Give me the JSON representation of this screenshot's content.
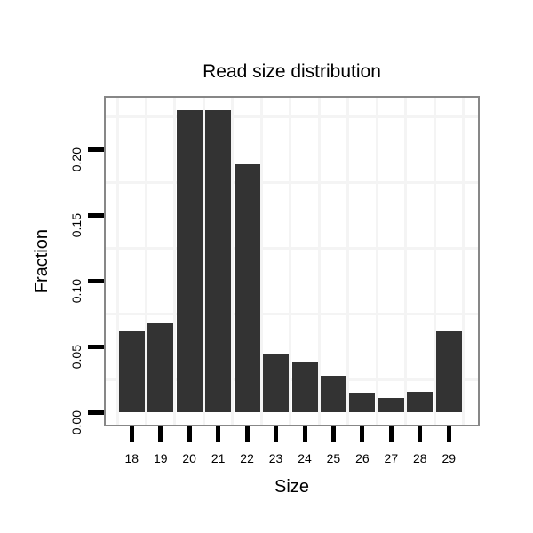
{
  "chart": {
    "title": "Read size distribution",
    "colors": {
      "bar": "#333333",
      "panel_border": "#878787",
      "grid_minor": "#f4f4f4",
      "tick": "#000000",
      "text": "#000000",
      "background": "#ffffff"
    }
  },
  "chart_data": {
    "type": "bar",
    "title": "Read size distribution",
    "xlabel": "Size",
    "ylabel": "Fraction",
    "categories": [
      "18",
      "19",
      "20",
      "21",
      "22",
      "23",
      "24",
      "25",
      "26",
      "27",
      "28",
      "29"
    ],
    "values": [
      0.062,
      0.068,
      0.23,
      0.23,
      0.189,
      0.045,
      0.039,
      0.028,
      0.015,
      0.011,
      0.016,
      0.062
    ],
    "y_tick_labels": [
      "0.00",
      "0.05",
      "0.10",
      "0.15",
      "0.20"
    ],
    "y_tick_values": [
      0,
      0.05,
      0.1,
      0.15,
      0.2
    ],
    "ylim": [
      -0.01,
      0.24
    ],
    "grid": "minor-only",
    "legend": "none",
    "bar_color": "#333333"
  }
}
